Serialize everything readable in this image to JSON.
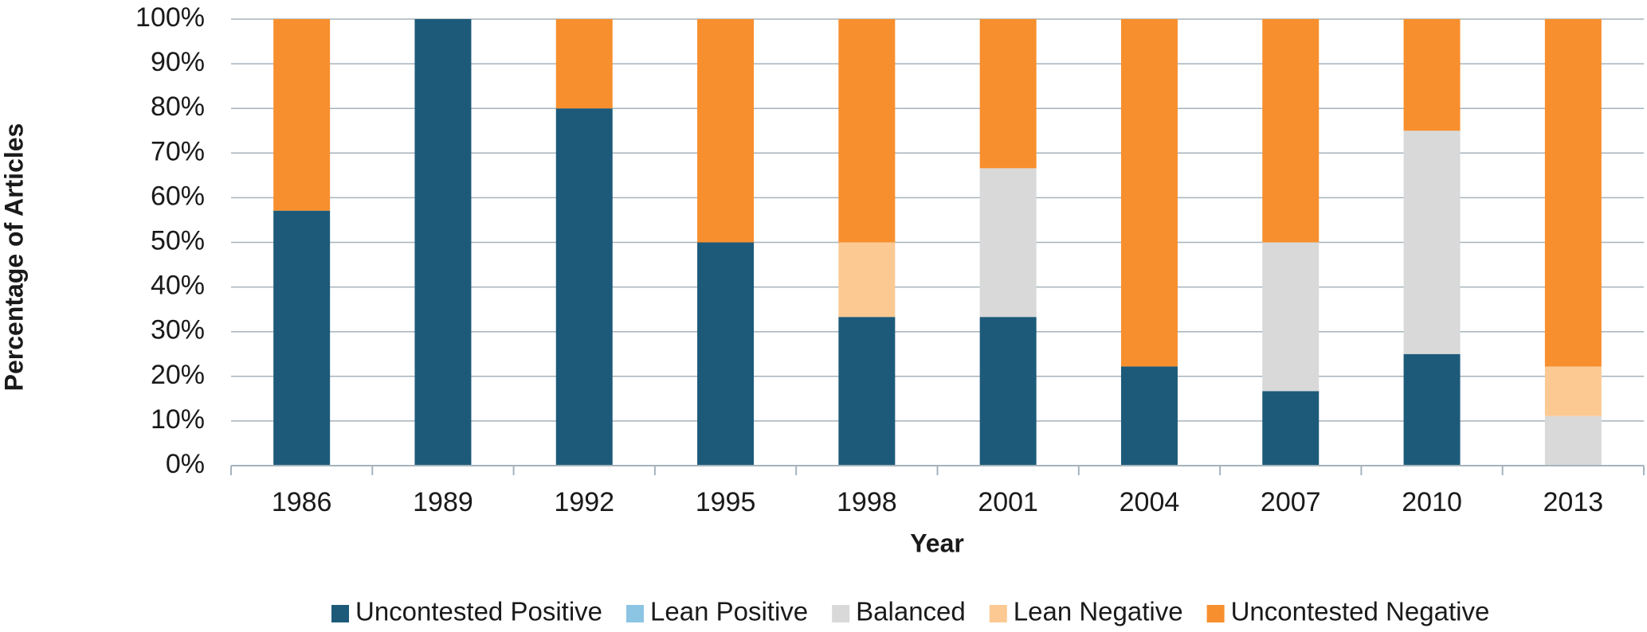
{
  "chart_data": {
    "type": "stacked_bar",
    "categories": [
      "1986",
      "1989",
      "1992",
      "1995",
      "1998",
      "2001",
      "2004",
      "2007",
      "2010",
      "2013"
    ],
    "series": [
      {
        "name": "Uncontested Positive",
        "color": "#1d5a7a",
        "values": [
          57.1,
          100,
          80,
          50,
          33.3,
          33.3,
          22.2,
          16.7,
          25,
          0
        ]
      },
      {
        "name": "Lean Positive",
        "color": "#8cc4e4",
        "values": [
          0,
          0,
          0,
          0,
          0,
          0,
          0,
          0,
          0,
          0
        ]
      },
      {
        "name": "Balanced",
        "color": "#d9d9d9",
        "values": [
          0,
          0,
          0,
          0,
          0,
          33.3,
          0,
          33.3,
          50,
          11.1
        ]
      },
      {
        "name": "Lean Negative",
        "color": "#fcc993",
        "values": [
          0,
          0,
          0,
          0,
          16.7,
          0,
          0,
          0,
          0,
          11.1
        ]
      },
      {
        "name": "Uncontested Negative",
        "color": "#f78f2e",
        "values": [
          42.9,
          0,
          20,
          50,
          50,
          33.4,
          77.8,
          50,
          25,
          77.8
        ]
      }
    ],
    "xlabel": "Year",
    "ylabel": "Percentage of Articles",
    "ylim": [
      0,
      100
    ],
    "yticks": [
      {
        "value": 0,
        "label": "0%"
      },
      {
        "value": 10,
        "label": "10%"
      },
      {
        "value": 20,
        "label": "20%"
      },
      {
        "value": 30,
        "label": "30%"
      },
      {
        "value": 40,
        "label": "40%"
      },
      {
        "value": 50,
        "label": "50%"
      },
      {
        "value": 60,
        "label": "60%"
      },
      {
        "value": 70,
        "label": "70%"
      },
      {
        "value": 80,
        "label": "80%"
      },
      {
        "value": 90,
        "label": "90%"
      },
      {
        "value": 100,
        "label": "100%"
      }
    ],
    "grid": true,
    "legend": "bottom"
  }
}
